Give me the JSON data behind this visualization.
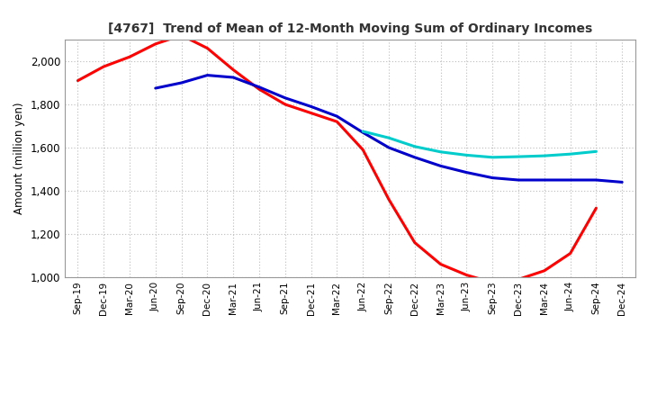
{
  "title": "[4767]  Trend of Mean of 12-Month Moving Sum of Ordinary Incomes",
  "ylabel": "Amount (million yen)",
  "ylim": [
    1000,
    2100
  ],
  "yticks": [
    1000,
    1200,
    1400,
    1600,
    1800,
    2000
  ],
  "background_color": "#ffffff",
  "grid_color": "#bbbbbb",
  "x_labels": [
    "Sep-19",
    "Dec-19",
    "Mar-20",
    "Jun-20",
    "Sep-20",
    "Dec-20",
    "Mar-21",
    "Jun-21",
    "Sep-21",
    "Dec-21",
    "Mar-22",
    "Jun-22",
    "Sep-22",
    "Dec-22",
    "Mar-23",
    "Jun-23",
    "Sep-23",
    "Dec-23",
    "Mar-24",
    "Jun-24",
    "Sep-24",
    "Dec-24"
  ],
  "series": {
    "3 Years": {
      "color": "#ff0000",
      "values": [
        1910,
        1975,
        2020,
        2080,
        2120,
        2060,
        1960,
        1870,
        1800,
        1760,
        1720,
        1590,
        1360,
        1160,
        1060,
        1010,
        975,
        990,
        1030,
        1110,
        1320,
        null
      ]
    },
    "5 Years": {
      "color": "#0000cc",
      "values": [
        null,
        null,
        null,
        1875,
        1900,
        1935,
        1925,
        1880,
        1830,
        1790,
        1745,
        1670,
        1600,
        1555,
        1515,
        1485,
        1460,
        1450,
        1450,
        1450,
        1450,
        1440
      ]
    },
    "7 Years": {
      "color": "#00cccc",
      "values": [
        null,
        null,
        null,
        null,
        null,
        null,
        null,
        null,
        null,
        null,
        null,
        1675,
        1645,
        1605,
        1580,
        1565,
        1555,
        1558,
        1562,
        1570,
        1582,
        null
      ]
    },
    "10 Years": {
      "color": "#009900",
      "values": [
        null,
        null,
        null,
        null,
        null,
        null,
        null,
        null,
        null,
        null,
        null,
        null,
        null,
        null,
        null,
        null,
        null,
        null,
        null,
        null,
        null,
        null
      ]
    }
  }
}
